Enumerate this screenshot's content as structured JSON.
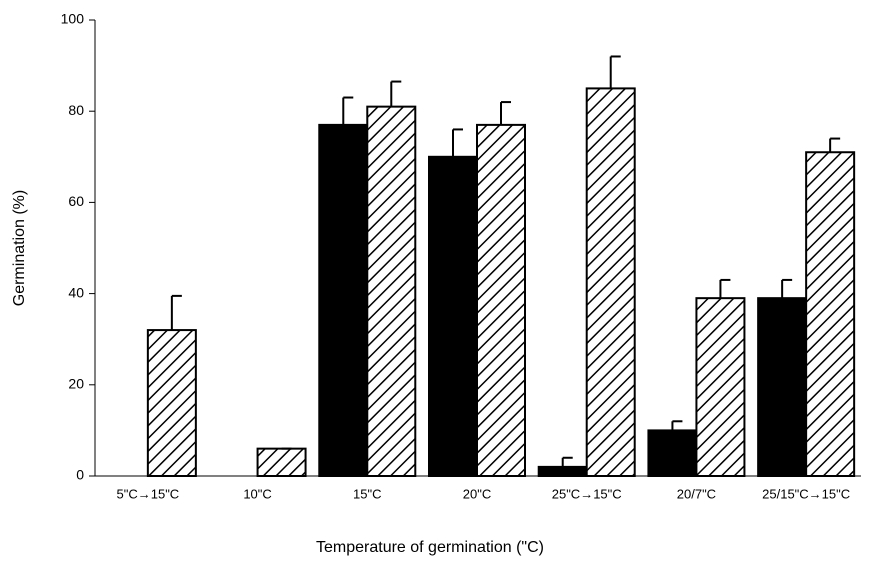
{
  "chart_data": {
    "type": "bar",
    "xlabel": "Temperature of germination (\"C)",
    "ylabel": "Germination (%)",
    "categories": [
      "5\"C→15\"C",
      "10\"C",
      "15\"C",
      "20\"C",
      "25\"C→15\"C",
      "20/7\"C",
      "25/15\"C→15\"C"
    ],
    "series": [
      {
        "color": "#000000",
        "pattern": "solid",
        "values": [
          null,
          null,
          77,
          70,
          2,
          10,
          39
        ],
        "errors": [
          null,
          null,
          6,
          6,
          2,
          2,
          4
        ]
      },
      {
        "color": "#000000",
        "pattern": "hatch",
        "values": [
          32,
          6,
          81,
          77,
          85,
          39,
          71
        ],
        "errors": [
          7.5,
          0,
          5.5,
          5,
          7,
          4,
          3
        ]
      }
    ],
    "ylim": [
      0,
      100
    ],
    "yticks": [
      0,
      20,
      40,
      60,
      80,
      100
    ]
  }
}
